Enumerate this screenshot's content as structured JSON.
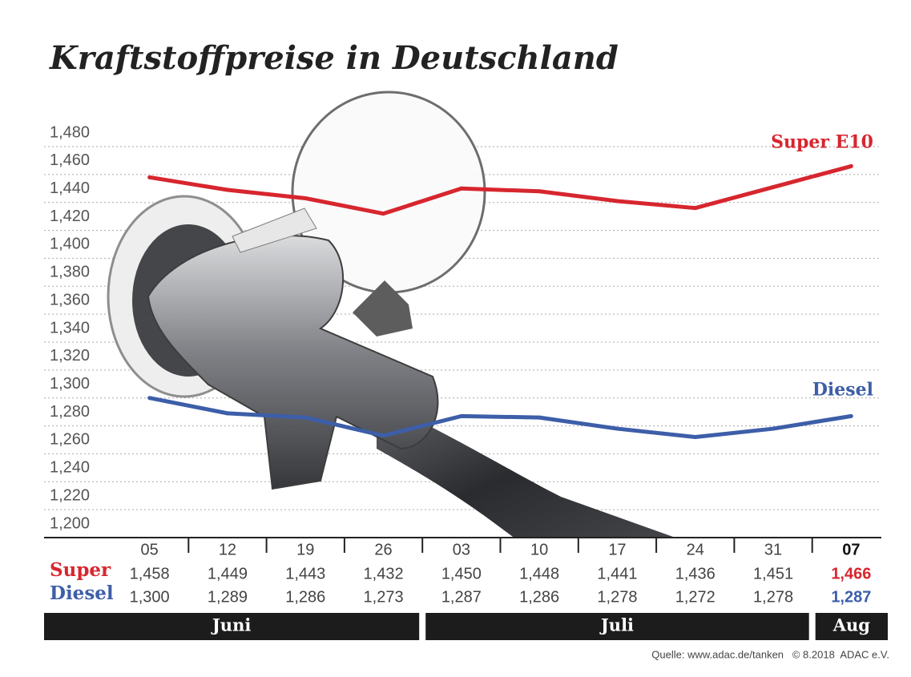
{
  "chart_data": {
    "type": "line",
    "title": "Kraftstoffpreise in Deutschland",
    "categories": [
      "05",
      "12",
      "19",
      "26",
      "03",
      "10",
      "17",
      "24",
      "31",
      "07"
    ],
    "series": [
      {
        "name": "Super E10",
        "row_label": "Super",
        "color": "#d7262e",
        "values": [
          1.458,
          1.449,
          1.443,
          1.432,
          1.45,
          1.448,
          1.441,
          1.436,
          1.451,
          1.466
        ],
        "value_labels": [
          "1,458",
          "1,449",
          "1,443",
          "1,432",
          "1,450",
          "1,448",
          "1,441",
          "1,436",
          "1,451",
          "1,466"
        ]
      },
      {
        "name": "Diesel",
        "row_label": "Diesel",
        "color": "#3d5ea8",
        "values": [
          1.3,
          1.289,
          1.286,
          1.273,
          1.287,
          1.286,
          1.278,
          1.272,
          1.278,
          1.287
        ],
        "value_labels": [
          "1,300",
          "1,289",
          "1,286",
          "1,273",
          "1,287",
          "1,286",
          "1,278",
          "1,272",
          "1,278",
          "1,287"
        ]
      }
    ],
    "ylim": [
      1.2,
      1.48
    ],
    "yticks": [
      {
        "value": 1.2,
        "label": "1,200"
      },
      {
        "value": 1.22,
        "label": "1,220"
      },
      {
        "value": 1.24,
        "label": "1,240"
      },
      {
        "value": 1.26,
        "label": "1,260"
      },
      {
        "value": 1.28,
        "label": "1,280"
      },
      {
        "value": 1.3,
        "label": "1,300"
      },
      {
        "value": 1.32,
        "label": "1,320"
      },
      {
        "value": 1.34,
        "label": "1,340"
      },
      {
        "value": 1.36,
        "label": "1,360"
      },
      {
        "value": 1.38,
        "label": "1,380"
      },
      {
        "value": 1.4,
        "label": "1,400"
      },
      {
        "value": 1.42,
        "label": "1,420"
      },
      {
        "value": 1.44,
        "label": "1,440"
      },
      {
        "value": 1.46,
        "label": "1,460"
      },
      {
        "value": 1.48,
        "label": "1,480"
      }
    ],
    "grid": true,
    "months": [
      {
        "label": "Juni",
        "count": 4
      },
      {
        "label": "Juli",
        "count": 5
      },
      {
        "label": "Aug",
        "count": 1
      }
    ],
    "source": "Quelle: www.adac.de/tanken   © 8.2018  ADAC e.V."
  }
}
